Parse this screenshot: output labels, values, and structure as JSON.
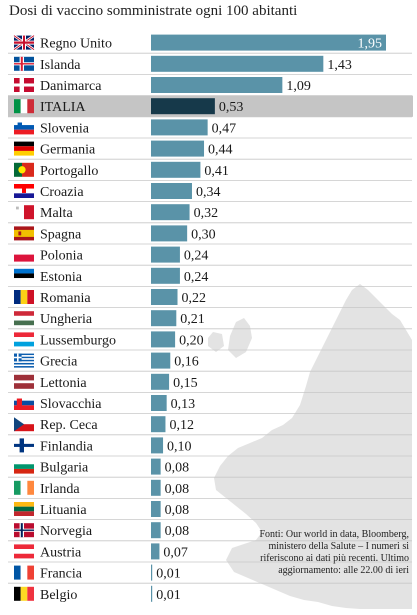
{
  "chart_data": {
    "type": "bar",
    "orientation": "horizontal",
    "title": "Dosi di vaccino somministrate ogni 100 abitanti",
    "categories": [
      "Regno Unito",
      "Islanda",
      "Danimarca",
      "ITALIA",
      "Slovenia",
      "Germania",
      "Portogallo",
      "Croazia",
      "Malta",
      "Spagna",
      "Polonia",
      "Estonia",
      "Romania",
      "Ungheria",
      "Lussemburgo",
      "Grecia",
      "Lettonia",
      "Slovacchia",
      "Rep. Ceca",
      "Finlandia",
      "Bulgaria",
      "Irlanda",
      "Lituania",
      "Norvegia",
      "Austria",
      "Francia",
      "Belgio"
    ],
    "values": [
      1.95,
      1.43,
      1.09,
      0.53,
      0.47,
      0.44,
      0.41,
      0.34,
      0.32,
      0.3,
      0.24,
      0.24,
      0.22,
      0.21,
      0.2,
      0.16,
      0.15,
      0.13,
      0.12,
      0.1,
      0.08,
      0.08,
      0.08,
      0.08,
      0.07,
      0.01,
      0.01
    ],
    "value_labels": [
      "1,95",
      "1,43",
      "1,09",
      "0,53",
      "0,47",
      "0,44",
      "0,41",
      "0,34",
      "0,32",
      "0,30",
      "0,24",
      "0,24",
      "0,22",
      "0,21",
      "0,20",
      "0,16",
      "0,15",
      "0,13",
      "0,12",
      "0,10",
      "0,08",
      "0,08",
      "0,08",
      "0,08",
      "0,07",
      "0,01",
      "0,01"
    ],
    "flags": [
      "uk-flag",
      "iceland-flag",
      "denmark-flag",
      "italy-flag",
      "slovenia-flag",
      "germany-flag",
      "portugal-flag",
      "croatia-flag",
      "malta-flag",
      "spain-flag",
      "poland-flag",
      "estonia-flag",
      "romania-flag",
      "hungary-flag",
      "luxembourg-flag",
      "greece-flag",
      "latvia-flag",
      "slovakia-flag",
      "czech-flag",
      "finland-flag",
      "bulgaria-flag",
      "ireland-flag",
      "lithuania-flag",
      "norway-flag",
      "austria-flag",
      "france-flag",
      "belgium-flag"
    ],
    "highlight": "ITALIA",
    "xlim": [
      0,
      1.95
    ],
    "grid": false,
    "colors": {
      "bar": "#5a93a8",
      "highlight_bar": "#16394a",
      "highlight_row": "#c5c5c5",
      "row_divider": "#c8c8c8",
      "map": "#e3e3e3"
    },
    "source": "Fonti: Our world in data, Bloomberg, ministero della Salute – I numeri si riferiscono ai dati più recenti. Ultimo aggiornamento: alle 22.00 di ieri"
  }
}
